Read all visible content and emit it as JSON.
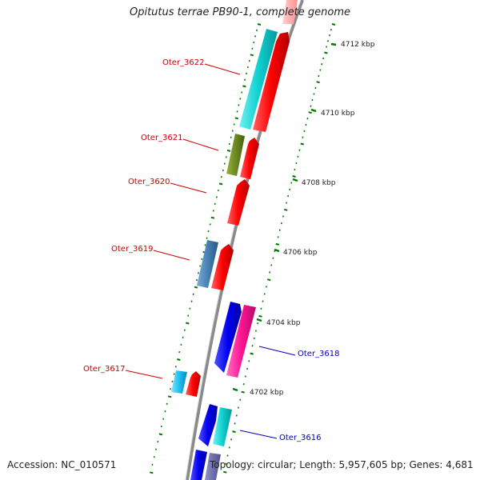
{
  "title": "Opitutus terrae PB90-1, complete genome",
  "footer": {
    "accession": "Accession: NC_010571",
    "topology": "Topology: circular; Length: 5,957,605 bp; Genes: 4,681"
  },
  "colors": {
    "forward_label": "#cc0000",
    "reverse_label": "#0000bb",
    "tick": "#007700",
    "backbone": "#888888"
  },
  "ticks": [
    "4712 kbp",
    "4710 kbp",
    "4708 kbp",
    "4706 kbp",
    "4704 kbp",
    "4702 kbp"
  ],
  "gene_labels": [
    {
      "name": "Oter_3622",
      "strand": "forward"
    },
    {
      "name": "Oter_3621",
      "strand": "forward"
    },
    {
      "name": "Oter_3620",
      "strand": "forward"
    },
    {
      "name": "Oter_3619",
      "strand": "forward"
    },
    {
      "name": "Oter_3618",
      "strand": "reverse"
    },
    {
      "name": "Oter_3617",
      "strand": "forward"
    },
    {
      "name": "Oter_3616",
      "strand": "reverse"
    }
  ]
}
